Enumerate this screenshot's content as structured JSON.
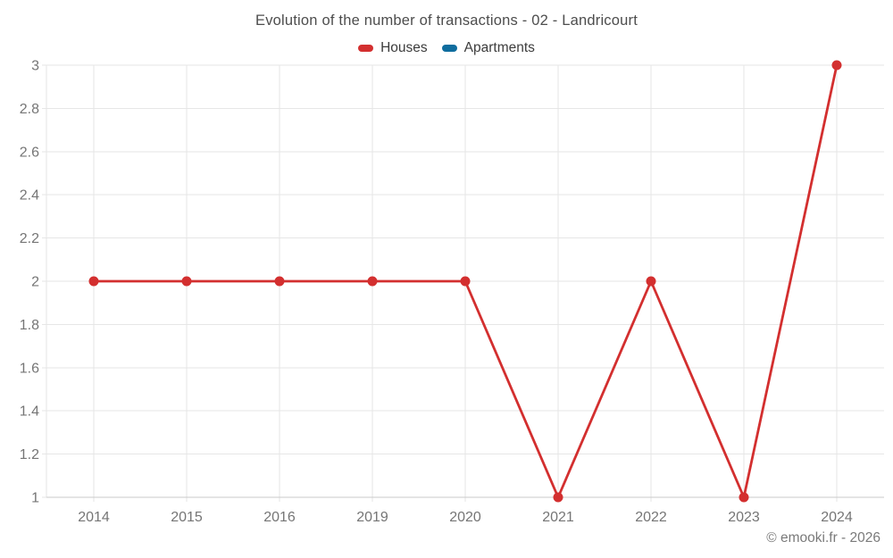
{
  "title": "Evolution of the number of transactions - 02 - Landricourt",
  "legend": {
    "items": [
      {
        "id": "houses",
        "label": "Houses",
        "color": "#d32f2f"
      },
      {
        "id": "apartments",
        "label": "Apartments",
        "color": "#0f6d9e"
      }
    ]
  },
  "footer": {
    "copyright": "© emooki.fr - 2026"
  },
  "colors": {
    "houses": "#d32f2f",
    "apartments": "#0f6d9e",
    "grid": "#e6e6e6",
    "axis": "#c9c9c9",
    "tick_text": "#757575",
    "title_text": "#4d4d4d"
  },
  "chart_data": {
    "type": "line",
    "title": "Evolution of the number of transactions - 02 - Landricourt",
    "categories": [
      "2014",
      "2015",
      "2016",
      "2019",
      "2020",
      "2021",
      "2022",
      "2023",
      "2024"
    ],
    "series": [
      {
        "name": "Houses",
        "color": "#d32f2f",
        "values": [
          2,
          2,
          2,
          2,
          2,
          1,
          2,
          1,
          3
        ]
      },
      {
        "name": "Apartments",
        "color": "#0f6d9e",
        "values": []
      }
    ],
    "xlabel": "",
    "ylabel": "",
    "ylim": [
      1,
      3
    ],
    "ytick_step": 0.2,
    "ytick_labels": [
      "1",
      "1.2",
      "1.4",
      "1.6",
      "1.8",
      "2",
      "2.2",
      "2.4",
      "2.6",
      "2.8",
      "3"
    ],
    "grid": true,
    "legend_position": "top",
    "markers": true
  }
}
